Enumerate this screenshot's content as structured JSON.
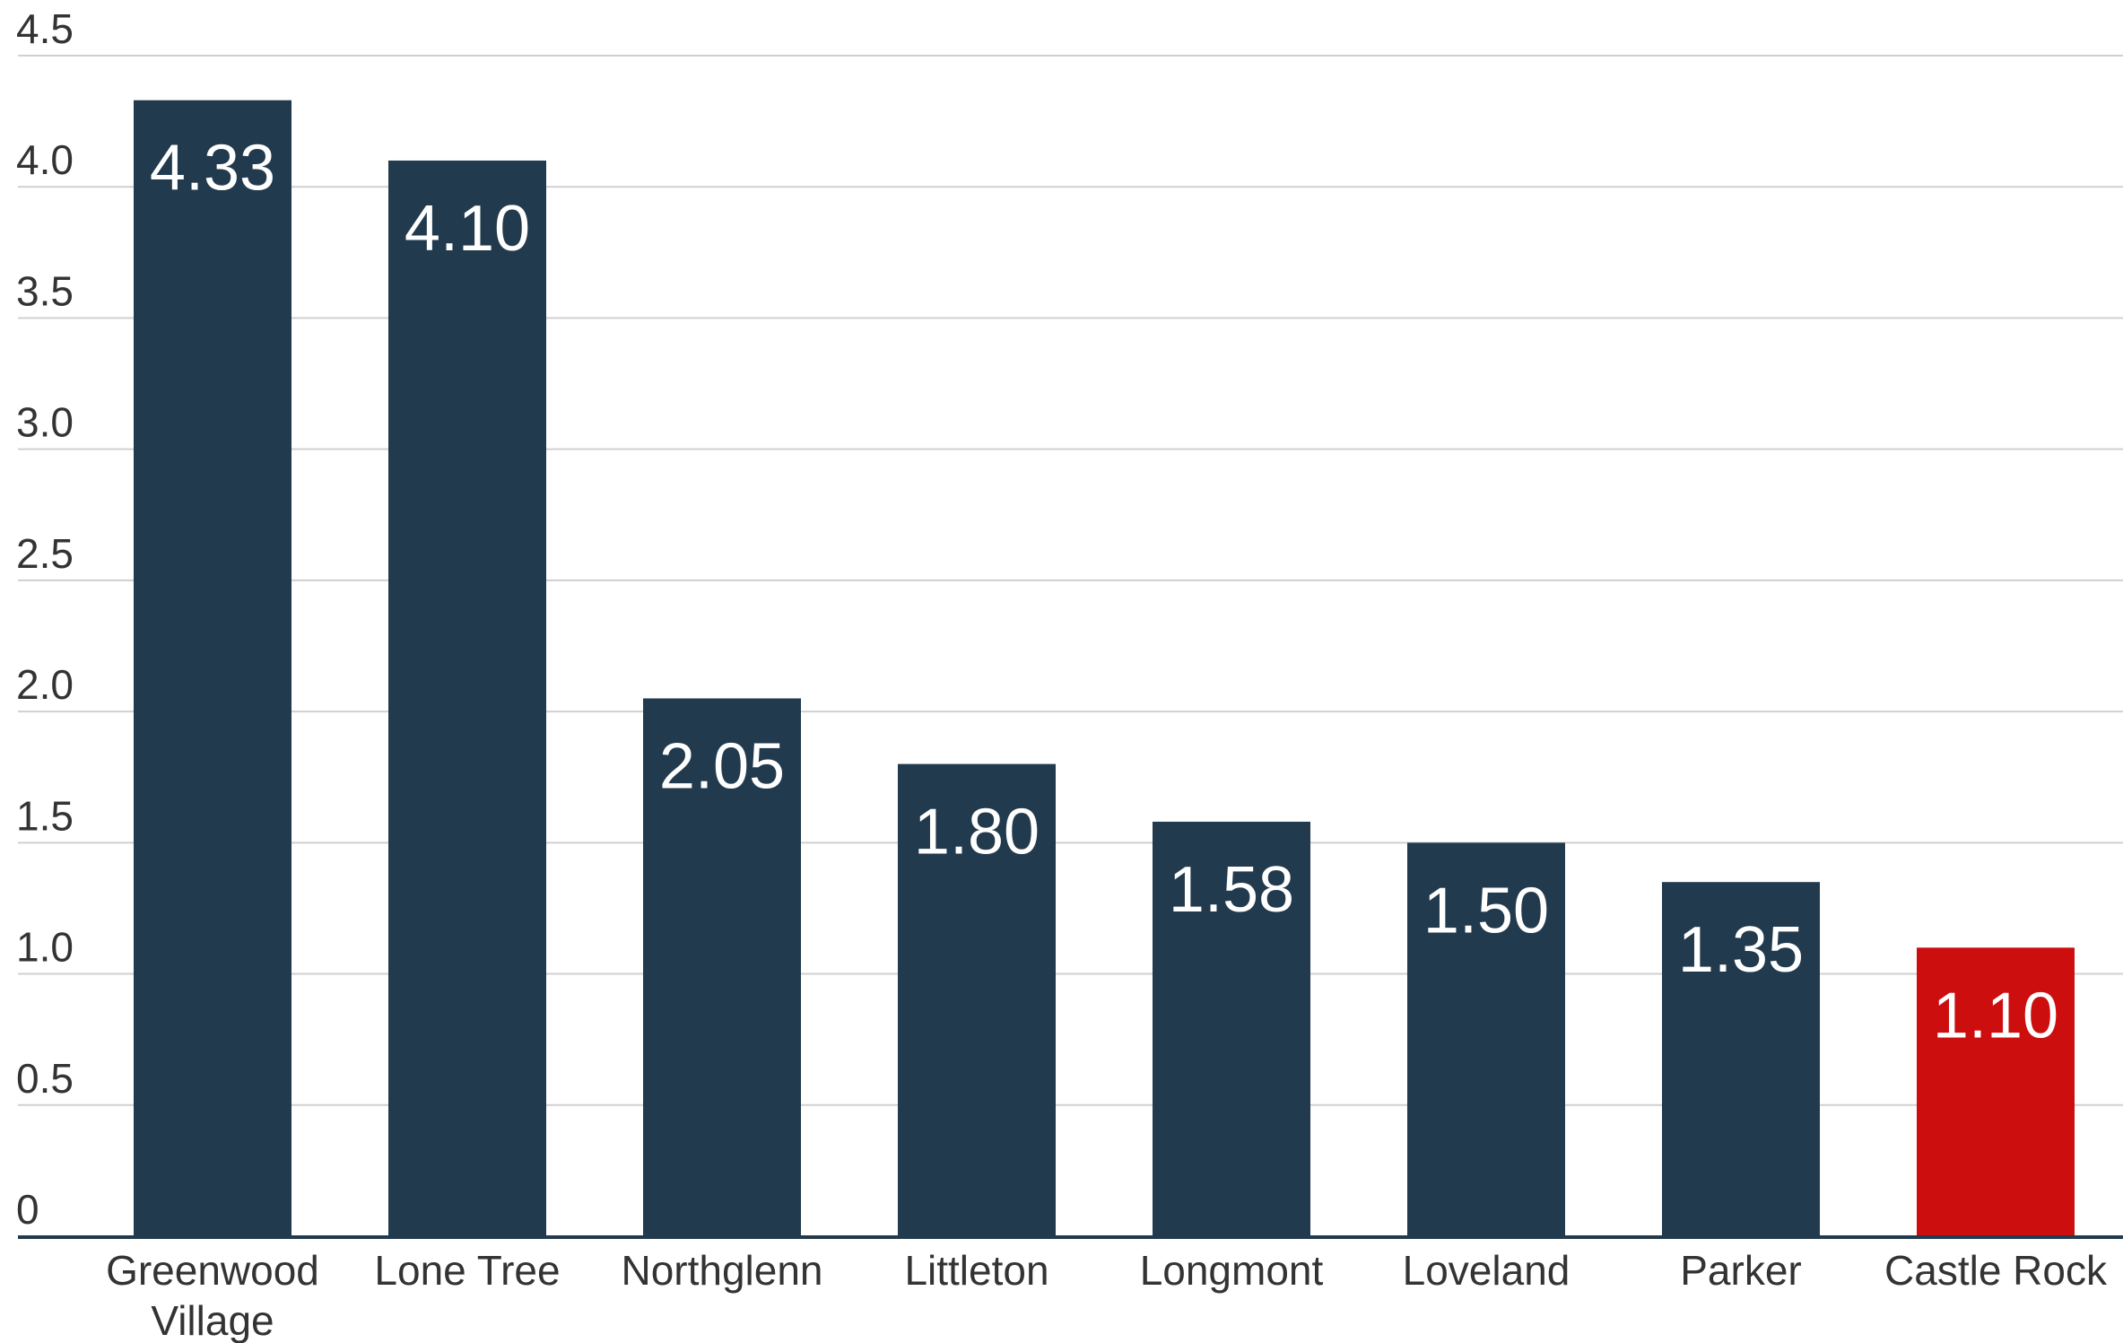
{
  "chart_data": {
    "type": "bar",
    "title": "",
    "xlabel": "",
    "ylabel": "",
    "categories": [
      "Greenwood Village",
      "Lone Tree",
      "Northglenn",
      "Littleton",
      "Longmont",
      "Loveland",
      "Parker",
      "Castle Rock"
    ],
    "category_label_lines": [
      [
        "Greenwood",
        "Village"
      ],
      [
        "Lone Tree"
      ],
      [
        "Northglenn"
      ],
      [
        "Littleton"
      ],
      [
        "Longmont"
      ],
      [
        "Loveland"
      ],
      [
        "Parker"
      ],
      [
        "Castle Rock"
      ]
    ],
    "values": [
      4.33,
      4.1,
      2.05,
      1.8,
      1.58,
      1.5,
      1.35,
      1.1
    ],
    "value_labels": [
      "4.33",
      "4.10",
      "2.05",
      "1.80",
      "1.58",
      "1.50",
      "1.35",
      "1.10"
    ],
    "ylim": [
      0,
      4.5
    ],
    "yticks": [
      0,
      0.5,
      1.0,
      1.5,
      2.0,
      2.5,
      3.0,
      3.5,
      4.0,
      4.5
    ],
    "ytick_labels": [
      "0",
      "0.5",
      "1.0",
      "1.5",
      "2.0",
      "2.5",
      "3.0",
      "3.5",
      "4.0",
      "4.5"
    ],
    "grid": true,
    "legend": "none",
    "colors": {
      "bar": "#223a4e",
      "highlight_bar": "#cc0e0e",
      "grid": "#d0d0d0",
      "axis": "#223a4e",
      "text": "#333333",
      "value_text": "#ffffff"
    },
    "highlight_category": "Castle Rock"
  }
}
